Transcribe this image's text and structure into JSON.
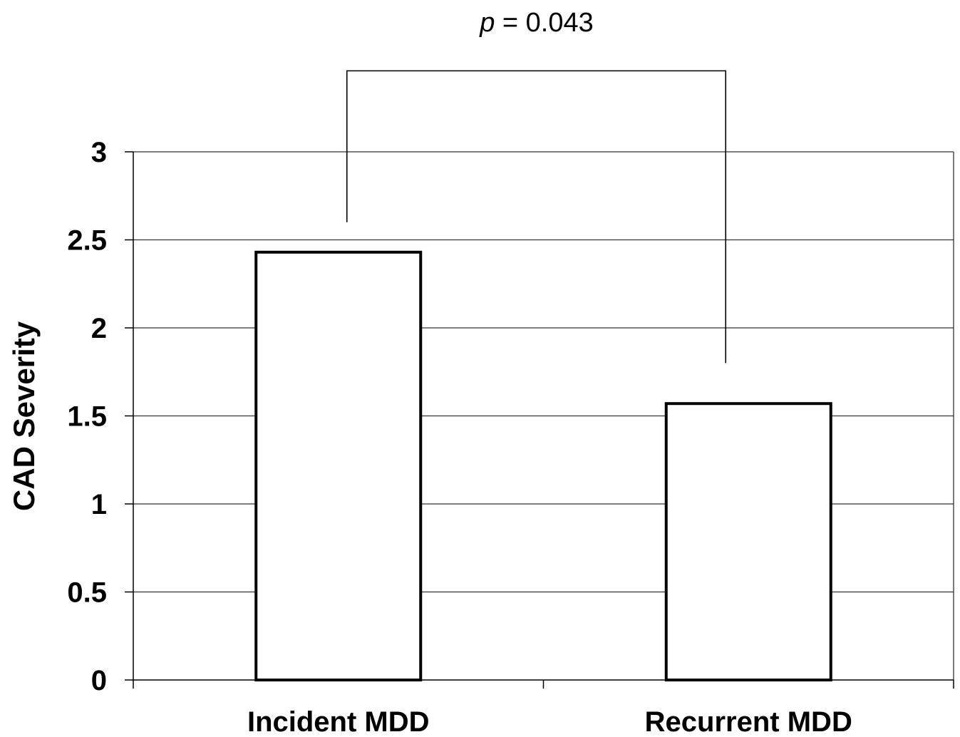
{
  "chart_data": {
    "type": "bar",
    "categories": [
      "Incident MDD",
      "Recurrent MDD"
    ],
    "values": [
      2.43,
      1.57
    ],
    "title": "",
    "xlabel": "",
    "ylabel": "CAD Severity",
    "ylim": [
      0,
      3
    ],
    "yticks": [
      0,
      0.5,
      1,
      1.5,
      2,
      2.5,
      3
    ],
    "ytick_labels": [
      "0",
      "0.5",
      "1",
      "1.5",
      "2",
      "2.5",
      "3"
    ],
    "grid": "horizontal",
    "bar_fill": "#ffffff",
    "bar_stroke": "#000000",
    "annotation": {
      "type": "significance-bracket",
      "between": [
        "Incident MDD",
        "Recurrent MDD"
      ],
      "p_symbol": "p",
      "p_rest": " = 0.043",
      "bracket_top_value": 3.46,
      "bracket_ends_values": [
        2.6,
        1.8
      ]
    }
  }
}
